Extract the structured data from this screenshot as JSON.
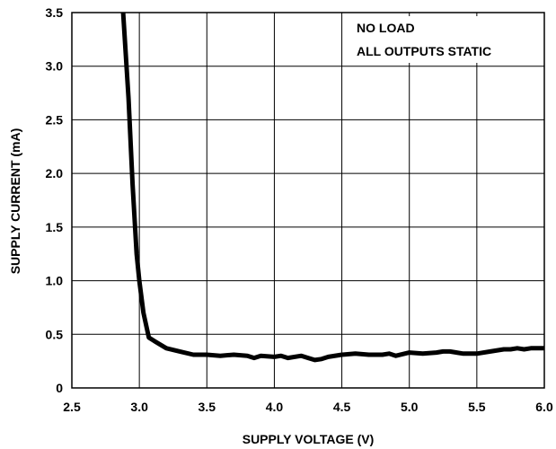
{
  "chart_data": {
    "type": "line",
    "title": "",
    "xlabel": "SUPPLY VOLTAGE (V)",
    "ylabel": "SUPPLY CURRENT (mA)",
    "xlim": [
      2.5,
      6.0
    ],
    "ylim": [
      0,
      3.5
    ],
    "xticks": [
      "2.5",
      "3.0",
      "3.5",
      "4.0",
      "4.5",
      "5.0",
      "5.5",
      "6.0"
    ],
    "yticks": [
      "0",
      "0.5",
      "1.0",
      "1.5",
      "2.0",
      "2.5",
      "3.0",
      "3.5"
    ],
    "grid": true,
    "annotations": [
      "NO LOAD",
      "ALL OUTPUTS STATIC"
    ],
    "series": [
      {
        "x": [
          2.88,
          2.92,
          2.95,
          2.98,
          3.0,
          3.03,
          3.07,
          3.12,
          3.2,
          3.3,
          3.4,
          3.5,
          3.6,
          3.7,
          3.8,
          3.85,
          3.9,
          4.0,
          4.05,
          4.1,
          4.2,
          4.25,
          4.3,
          4.35,
          4.4,
          4.5,
          4.6,
          4.7,
          4.8,
          4.85,
          4.9,
          5.0,
          5.1,
          5.2,
          5.25,
          5.3,
          5.4,
          5.5,
          5.6,
          5.7,
          5.75,
          5.8,
          5.85,
          5.9,
          6.0
        ],
        "y": [
          3.5,
          2.7,
          1.9,
          1.25,
          1.0,
          0.7,
          0.47,
          0.43,
          0.37,
          0.34,
          0.31,
          0.31,
          0.3,
          0.31,
          0.3,
          0.28,
          0.3,
          0.29,
          0.3,
          0.28,
          0.3,
          0.28,
          0.26,
          0.27,
          0.29,
          0.31,
          0.32,
          0.31,
          0.31,
          0.32,
          0.3,
          0.33,
          0.32,
          0.33,
          0.34,
          0.34,
          0.32,
          0.32,
          0.34,
          0.36,
          0.36,
          0.37,
          0.36,
          0.37,
          0.37
        ]
      }
    ]
  }
}
